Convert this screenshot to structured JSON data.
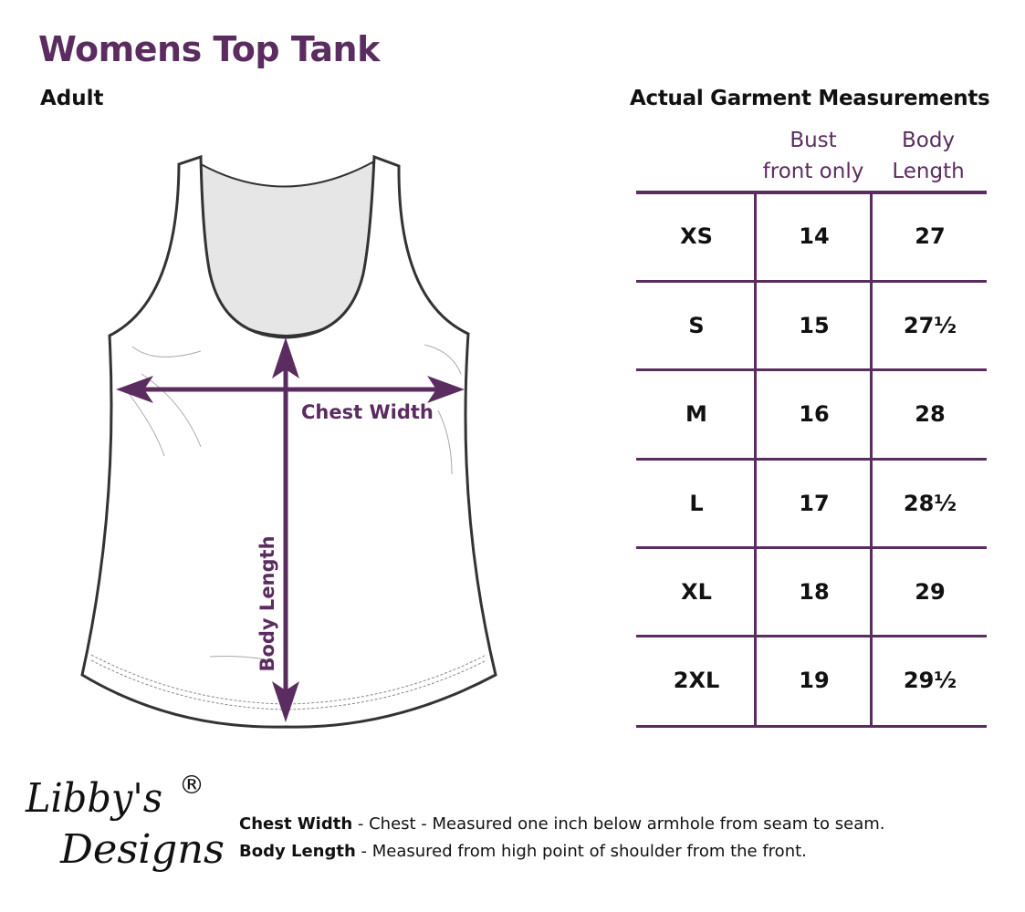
{
  "title": "Womens Top Tank",
  "subtitle": "Adult",
  "diagram": {
    "chest_label": "Chest Width",
    "length_label": "Body Length"
  },
  "table": {
    "title": "Actual Garment Measurements",
    "columns": [
      {
        "line1": "Bust",
        "line2": "front only"
      },
      {
        "line1": "Body",
        "line2": "Length"
      }
    ],
    "rows": [
      {
        "size": "XS",
        "bust": "14",
        "length": "27"
      },
      {
        "size": "S",
        "bust": "15",
        "length": "27½"
      },
      {
        "size": "M",
        "bust": "16",
        "length": "28"
      },
      {
        "size": "L",
        "bust": "17",
        "length": "28½"
      },
      {
        "size": "XL",
        "bust": "18",
        "length": "29"
      },
      {
        "size": "2XL",
        "bust": "19",
        "length": "29½"
      }
    ]
  },
  "logo": {
    "line1": "Libby's",
    "line2": "Designs",
    "mark": "®"
  },
  "notes": [
    {
      "term": "Chest Width",
      "text": " - Chest - Measured one inch below armhole from seam to seam."
    },
    {
      "term": "Body Length",
      "text": " - Measured from high point of shoulder from the front."
    }
  ],
  "colors": {
    "accent": "#5b2c5f",
    "text": "#111111"
  }
}
